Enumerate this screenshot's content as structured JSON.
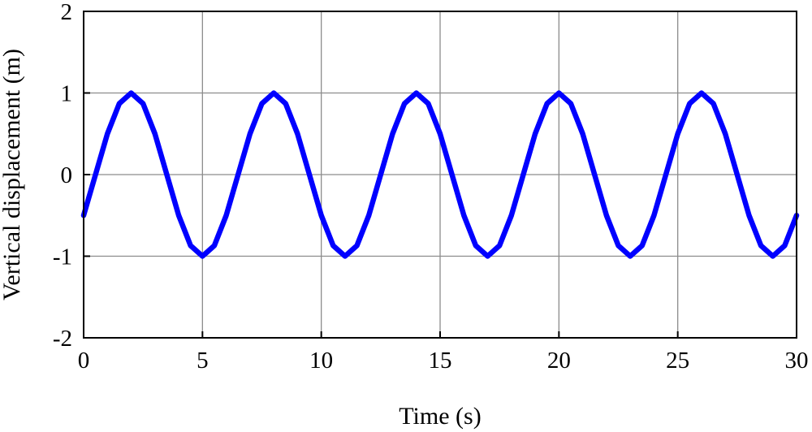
{
  "chart_data": {
    "type": "line",
    "title": "",
    "xlabel": "Time (s)",
    "ylabel": "Vertical displacement (m)",
    "xlim": [
      0,
      30
    ],
    "ylim": [
      -2,
      2
    ],
    "xticks": [
      0,
      5,
      10,
      15,
      20,
      25,
      30
    ],
    "yticks": [
      -2,
      -1,
      0,
      1,
      2
    ],
    "xtick_labels": [
      "0",
      "5",
      "10",
      "15",
      "20",
      "25",
      "30"
    ],
    "ytick_labels": [
      "-2",
      "-1",
      "0",
      "1",
      "2"
    ],
    "grid": true,
    "legend": "none",
    "series": [
      {
        "color": "#0000ff",
        "x": [
          0,
          0.5,
          1,
          1.5,
          2,
          2.5,
          3,
          3.5,
          4,
          4.5,
          5,
          5.5,
          6,
          6.5,
          7,
          7.5,
          8,
          8.5,
          9,
          9.5,
          10,
          10.5,
          11,
          11.5,
          12,
          12.5,
          13,
          13.5,
          14,
          14.5,
          15,
          15.5,
          16,
          16.5,
          17,
          17.5,
          18,
          18.5,
          19,
          19.5,
          20,
          20.5,
          21,
          21.5,
          22,
          22.5,
          23,
          23.5,
          24,
          24.5,
          25,
          25.5,
          26,
          26.5,
          27,
          27.5,
          28,
          28.5,
          29,
          29.5,
          30
        ],
        "y": [
          -0.5,
          0.0,
          0.5,
          0.87,
          1.0,
          0.87,
          0.5,
          0.0,
          -0.5,
          -0.87,
          -1.0,
          -0.87,
          -0.5,
          0.0,
          0.5,
          0.87,
          1.0,
          0.87,
          0.5,
          0.0,
          -0.5,
          -0.87,
          -1.0,
          -0.87,
          -0.5,
          0.0,
          0.5,
          0.87,
          1.0,
          0.87,
          0.5,
          0.0,
          -0.5,
          -0.87,
          -1.0,
          -0.87,
          -0.5,
          0.0,
          0.5,
          0.87,
          1.0,
          0.87,
          0.5,
          0.0,
          -0.5,
          -0.87,
          -1.0,
          -0.87,
          -0.5,
          0.0,
          0.5,
          0.87,
          1.0,
          0.87,
          0.5,
          0.0,
          -0.5,
          -0.87,
          -1.0,
          -0.87,
          -0.5
        ]
      }
    ]
  }
}
